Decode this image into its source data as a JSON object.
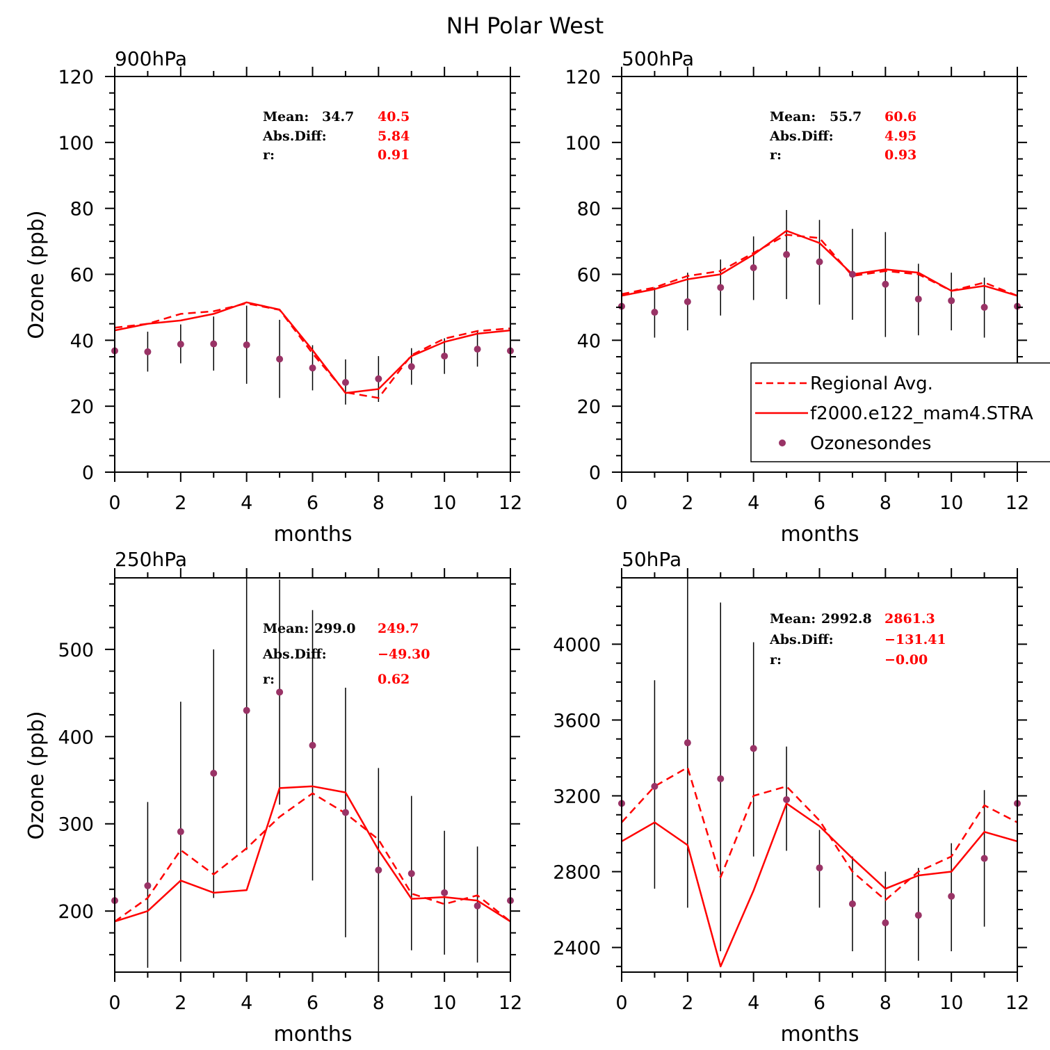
{
  "title": "NH Polar West",
  "colors": {
    "model": "#ff0000",
    "obs": "#993366",
    "axis": "#000000",
    "stats_obs": "#000000",
    "stats_model": "#ff0000"
  },
  "legend": {
    "items": [
      {
        "label": "Regional Avg.",
        "style": "dashed"
      },
      {
        "label": "f2000.e122_mam4.STRA",
        "style": "solid"
      },
      {
        "label": "Ozonesondes",
        "style": "marker"
      }
    ]
  },
  "chart_data": [
    {
      "type": "line",
      "panel_label": "900hPa",
      "xlabel": "months",
      "ylabel": "Ozone (ppb)",
      "xlim": [
        0,
        12
      ],
      "ylim": [
        0,
        120
      ],
      "xticks": [
        0,
        2,
        4,
        6,
        8,
        10,
        12
      ],
      "yticks": [
        0,
        20,
        40,
        60,
        80,
        100,
        120
      ],
      "yminor": 4,
      "x": [
        0,
        1,
        2,
        3,
        4,
        5,
        6,
        7,
        8,
        9,
        10,
        11,
        12
      ],
      "series": [
        {
          "name": "Regional Avg.",
          "style": "dashed",
          "values": [
            43.8,
            45,
            48,
            48.8,
            51.2,
            49.2,
            36,
            24.2,
            22.5,
            35.5,
            40.5,
            42.8,
            43.6
          ]
        },
        {
          "name": "f2000.e122_mam4.STRA",
          "style": "solid",
          "values": [
            43,
            45,
            46,
            48,
            51.5,
            49.3,
            37,
            24,
            25.2,
            35.2,
            39.5,
            42,
            43
          ]
        },
        {
          "name": "Ozonesondes",
          "style": "marker",
          "values": [
            36.8,
            36.5,
            38.8,
            38.9,
            38.6,
            34.3,
            31.6,
            27.2,
            28.3,
            32,
            35.2,
            37.3,
            36.8
          ],
          "err_low": [
            null,
            30.5,
            33,
            30.8,
            26.8,
            22.5,
            24.8,
            20.5,
            21.3,
            26.5,
            29.8,
            32,
            null
          ],
          "err_high": [
            null,
            42.6,
            44.8,
            47.2,
            50.5,
            46.2,
            38.5,
            34.2,
            35.2,
            37.6,
            40.6,
            42.8,
            null
          ]
        }
      ],
      "stats": {
        "mean_label": "Mean:",
        "mean_obs": "34.7",
        "mean_model": "40.5",
        "absdiff_label": "Abs.Diff:",
        "absdiff": "5.84",
        "r_label": "r:",
        "r": "0.91"
      }
    },
    {
      "type": "line",
      "panel_label": "500hPa",
      "xlabel": "months",
      "ylabel": "",
      "xlim": [
        0,
        12
      ],
      "ylim": [
        0,
        120
      ],
      "xticks": [
        0,
        2,
        4,
        6,
        8,
        10,
        12
      ],
      "yticks": [
        0,
        20,
        40,
        60,
        80,
        100,
        120
      ],
      "yminor": 4,
      "x": [
        0,
        1,
        2,
        3,
        4,
        5,
        6,
        7,
        8,
        9,
        10,
        11,
        12
      ],
      "series": [
        {
          "name": "Regional Avg.",
          "style": "dashed",
          "values": [
            54,
            56,
            59.5,
            61,
            66.5,
            72,
            71,
            59.5,
            61,
            60,
            55,
            57.5,
            53.5
          ]
        },
        {
          "name": "f2000.e122_mam4.STRA",
          "style": "solid",
          "values": [
            53.5,
            55.5,
            58.5,
            60,
            66,
            73.2,
            69.5,
            60,
            61.5,
            60.5,
            55,
            56.5,
            53.5
          ]
        },
        {
          "name": "Ozonesondes",
          "style": "marker",
          "values": [
            50.3,
            48.5,
            51.7,
            56,
            62,
            66,
            63.8,
            60,
            57,
            52.5,
            52,
            50,
            50.3
          ],
          "err_low": [
            null,
            40.8,
            43,
            47.5,
            52.2,
            52.5,
            50.8,
            46.2,
            41,
            41.5,
            43,
            40.8,
            null
          ],
          "err_high": [
            null,
            56,
            60.5,
            64.5,
            71.5,
            79.5,
            76.5,
            73.8,
            72.8,
            63.2,
            60.5,
            59,
            null
          ]
        }
      ],
      "stats": {
        "mean_label": "Mean:",
        "mean_obs": "55.7",
        "mean_model": "60.6",
        "absdiff_label": "Abs.Diff:",
        "absdiff": "4.95",
        "r_label": "r:",
        "r": "0.93"
      }
    },
    {
      "type": "line",
      "panel_label": "250hPa",
      "xlabel": "months",
      "ylabel": "Ozone (ppb)",
      "xlim": [
        0,
        12
      ],
      "ylim": [
        130,
        582
      ],
      "xticks": [
        0,
        2,
        4,
        6,
        8,
        10,
        12
      ],
      "yticks": [
        200,
        300,
        400,
        500
      ],
      "yminor": 4,
      "x": [
        0,
        1,
        2,
        3,
        4,
        5,
        6,
        7,
        8,
        9,
        10,
        11,
        12
      ],
      "series": [
        {
          "name": "Regional Avg.",
          "style": "dashed",
          "values": [
            188,
            215,
            270,
            242,
            272,
            308,
            335,
            312,
            282,
            220,
            208,
            218,
            188
          ]
        },
        {
          "name": "f2000.e122_mam4.STRA",
          "style": "solid",
          "values": [
            188,
            200,
            235,
            221,
            224,
            341,
            343,
            336,
            270,
            214,
            216,
            212,
            188
          ]
        },
        {
          "name": "Ozonesondes",
          "style": "marker",
          "values": [
            212,
            229,
            291,
            358,
            430,
            451,
            390,
            313,
            247,
            243,
            221,
            206,
            212
          ],
          "err_low": [
            null,
            135,
            142,
            215,
            270,
            322,
            235,
            170,
            130,
            155,
            150,
            141,
            null
          ],
          "err_high": [
            null,
            325,
            440,
            500,
            582,
            580,
            545,
            456,
            364,
            332,
            292,
            274,
            null
          ]
        }
      ],
      "stats": {
        "mean_label": "Mean:",
        "mean_obs": "299.0",
        "mean_model": "249.7",
        "absdiff_label": "Abs.Diff:",
        "absdiff": "−49.30",
        "r_label": "r:",
        "r": "0.62"
      }
    },
    {
      "type": "line",
      "panel_label": "50hPa",
      "xlabel": "months",
      "ylabel": "",
      "xlim": [
        0,
        12
      ],
      "ylim": [
        2270,
        4350
      ],
      "xticks": [
        0,
        2,
        4,
        6,
        8,
        10,
        12
      ],
      "yticks": [
        2400,
        2800,
        3200,
        3600,
        4000
      ],
      "yminor": 4,
      "x": [
        0,
        1,
        2,
        3,
        4,
        5,
        6,
        7,
        8,
        9,
        10,
        11,
        12
      ],
      "series": [
        {
          "name": "Regional Avg.",
          "style": "dashed",
          "values": [
            3060,
            3250,
            3350,
            2770,
            3200,
            3250,
            3070,
            2800,
            2650,
            2800,
            2880,
            3150,
            3060
          ]
        },
        {
          "name": "f2000.e122_mam4.STRA",
          "style": "solid",
          "values": [
            2960,
            3060,
            2940,
            2300,
            2700,
            3160,
            3040,
            2870,
            2710,
            2780,
            2800,
            3010,
            2960
          ]
        },
        {
          "name": "Ozonesondes",
          "style": "marker",
          "values": [
            3160,
            3250,
            3480,
            3290,
            3450,
            3180,
            2820,
            2630,
            2530,
            2570,
            2670,
            2870,
            3160
          ],
          "err_low": [
            null,
            2710,
            2610,
            2380,
            2880,
            2910,
            2610,
            2380,
            2270,
            2330,
            2380,
            2510,
            null
          ],
          "err_high": [
            null,
            3810,
            4350,
            4220,
            4010,
            3460,
            3020,
            2880,
            2800,
            2820,
            2950,
            3230,
            null
          ]
        }
      ],
      "stats": {
        "mean_label": "Mean:",
        "mean_obs": "2992.8",
        "mean_model": "2861.3",
        "absdiff_label": "Abs.Diff:",
        "absdiff": "−131.41",
        "r_label": "r:",
        "r": "−0.00"
      }
    }
  ]
}
